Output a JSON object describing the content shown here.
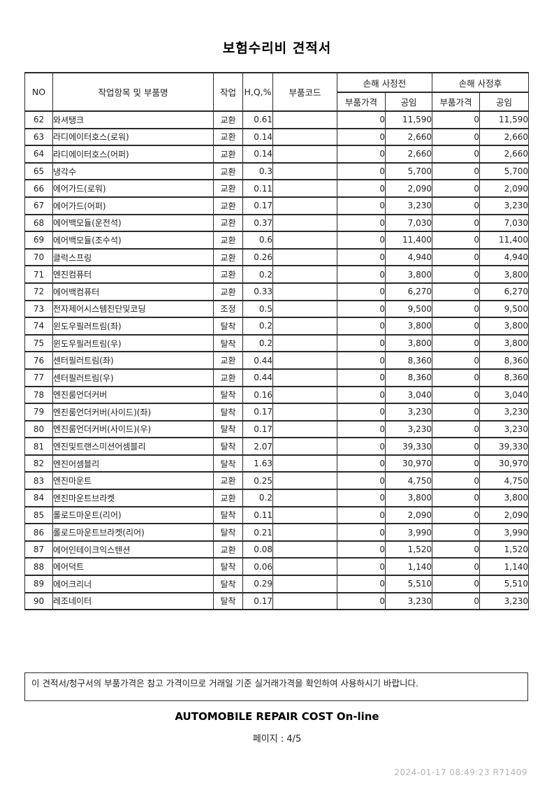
{
  "page": {
    "title": "보험수리비 견적서",
    "footer_note": "이 견적서/청구서의 부품가격은 참고 가격이므로 거래일 기준 실거래가격을 확인하여 사용하시기 바랍니다.",
    "brand": "AUTOMOBILE REPAIR COST On-line",
    "page_label": "페이지 : 4/5",
    "stamp": "2024-01-17 08:49:23 R71409"
  },
  "table": {
    "headers": {
      "no": "NO",
      "item": "작업항목 및 부품명",
      "work": "작업",
      "hq": "H,Q,%",
      "part_code": "부품코드",
      "before": "손해 사정전",
      "after": "손해 사정후",
      "part_price": "부품가격",
      "labor": "공임"
    },
    "rows": [
      {
        "no": "62",
        "item": "와셔탱크",
        "work": "교환",
        "hq": "0.61",
        "code": "",
        "b_part": "0",
        "b_labor": "11,590",
        "a_part": "0",
        "a_labor": "11,590"
      },
      {
        "no": "63",
        "item": "라디에이터호스(로워)",
        "work": "교환",
        "hq": "0.14",
        "code": "",
        "b_part": "0",
        "b_labor": "2,660",
        "a_part": "0",
        "a_labor": "2,660"
      },
      {
        "no": "64",
        "item": "라디에이터호스(어퍼)",
        "work": "교환",
        "hq": "0.14",
        "code": "",
        "b_part": "0",
        "b_labor": "2,660",
        "a_part": "0",
        "a_labor": "2,660"
      },
      {
        "no": "65",
        "item": "냉각수",
        "work": "교환",
        "hq": "0.3",
        "code": "",
        "b_part": "0",
        "b_labor": "5,700",
        "a_part": "0",
        "a_labor": "5,700"
      },
      {
        "no": "66",
        "item": "에어가드(로워)",
        "work": "교환",
        "hq": "0.11",
        "code": "",
        "b_part": "0",
        "b_labor": "2,090",
        "a_part": "0",
        "a_labor": "2,090"
      },
      {
        "no": "67",
        "item": "에어가드(어퍼)",
        "work": "교환",
        "hq": "0.17",
        "code": "",
        "b_part": "0",
        "b_labor": "3,230",
        "a_part": "0",
        "a_labor": "3,230"
      },
      {
        "no": "68",
        "item": "에어백모듈(운전석)",
        "work": "교환",
        "hq": "0.37",
        "code": "",
        "b_part": "0",
        "b_labor": "7,030",
        "a_part": "0",
        "a_labor": "7,030"
      },
      {
        "no": "69",
        "item": "에어백모듈(조수석)",
        "work": "교환",
        "hq": "0.6",
        "code": "",
        "b_part": "0",
        "b_labor": "11,400",
        "a_part": "0",
        "a_labor": "11,400"
      },
      {
        "no": "70",
        "item": "클럭스프링",
        "work": "교환",
        "hq": "0.26",
        "code": "",
        "b_part": "0",
        "b_labor": "4,940",
        "a_part": "0",
        "a_labor": "4,940"
      },
      {
        "no": "71",
        "item": "엔진컴퓨터",
        "work": "교환",
        "hq": "0.2",
        "code": "",
        "b_part": "0",
        "b_labor": "3,800",
        "a_part": "0",
        "a_labor": "3,800"
      },
      {
        "no": "72",
        "item": "에어백컴퓨터",
        "work": "교환",
        "hq": "0.33",
        "code": "",
        "b_part": "0",
        "b_labor": "6,270",
        "a_part": "0",
        "a_labor": "6,270"
      },
      {
        "no": "73",
        "item": "전자제어시스템진단및코딩",
        "work": "조정",
        "hq": "0.5",
        "code": "",
        "b_part": "0",
        "b_labor": "9,500",
        "a_part": "0",
        "a_labor": "9,500"
      },
      {
        "no": "74",
        "item": "윈도우필러트림(좌)",
        "work": "탈착",
        "hq": "0.2",
        "code": "",
        "b_part": "0",
        "b_labor": "3,800",
        "a_part": "0",
        "a_labor": "3,800"
      },
      {
        "no": "75",
        "item": "윈도우필러트림(우)",
        "work": "탈착",
        "hq": "0.2",
        "code": "",
        "b_part": "0",
        "b_labor": "3,800",
        "a_part": "0",
        "a_labor": "3,800"
      },
      {
        "no": "76",
        "item": "센터필러트림(좌)",
        "work": "교환",
        "hq": "0.44",
        "code": "",
        "b_part": "0",
        "b_labor": "8,360",
        "a_part": "0",
        "a_labor": "8,360"
      },
      {
        "no": "77",
        "item": "센터필러트림(우)",
        "work": "교환",
        "hq": "0.44",
        "code": "",
        "b_part": "0",
        "b_labor": "8,360",
        "a_part": "0",
        "a_labor": "8,360"
      },
      {
        "no": "78",
        "item": "엔진룸언더커버",
        "work": "탈착",
        "hq": "0.16",
        "code": "",
        "b_part": "0",
        "b_labor": "3,040",
        "a_part": "0",
        "a_labor": "3,040"
      },
      {
        "no": "79",
        "item": "엔진룸언더커버(사이드)(좌)",
        "work": "탈착",
        "hq": "0.17",
        "code": "",
        "b_part": "0",
        "b_labor": "3,230",
        "a_part": "0",
        "a_labor": "3,230"
      },
      {
        "no": "80",
        "item": "엔진룸언더커버(사이드)(우)",
        "work": "탈착",
        "hq": "0.17",
        "code": "",
        "b_part": "0",
        "b_labor": "3,230",
        "a_part": "0",
        "a_labor": "3,230"
      },
      {
        "no": "81",
        "item": "엔진및트랜스미션어셈블리",
        "work": "탈착",
        "hq": "2.07",
        "code": "",
        "b_part": "0",
        "b_labor": "39,330",
        "a_part": "0",
        "a_labor": "39,330"
      },
      {
        "no": "82",
        "item": "엔진어셈블리",
        "work": "탈착",
        "hq": "1.63",
        "code": "",
        "b_part": "0",
        "b_labor": "30,970",
        "a_part": "0",
        "a_labor": "30,970"
      },
      {
        "no": "83",
        "item": "엔진마운트",
        "work": "교환",
        "hq": "0.25",
        "code": "",
        "b_part": "0",
        "b_labor": "4,750",
        "a_part": "0",
        "a_labor": "4,750"
      },
      {
        "no": "84",
        "item": "엔진마운트브라켓",
        "work": "교환",
        "hq": "0.2",
        "code": "",
        "b_part": "0",
        "b_labor": "3,800",
        "a_part": "0",
        "a_labor": "3,800"
      },
      {
        "no": "85",
        "item": "롤로드마운트(리어)",
        "work": "탈착",
        "hq": "0.11",
        "code": "",
        "b_part": "0",
        "b_labor": "2,090",
        "a_part": "0",
        "a_labor": "2,090"
      },
      {
        "no": "86",
        "item": "롤로드마운트브라켓(리어)",
        "work": "탈착",
        "hq": "0.21",
        "code": "",
        "b_part": "0",
        "b_labor": "3,990",
        "a_part": "0",
        "a_labor": "3,990"
      },
      {
        "no": "87",
        "item": "에어인테이크익스텐션",
        "work": "교환",
        "hq": "0.08",
        "code": "",
        "b_part": "0",
        "b_labor": "1,520",
        "a_part": "0",
        "a_labor": "1,520"
      },
      {
        "no": "88",
        "item": "에어덕트",
        "work": "탈착",
        "hq": "0.06",
        "code": "",
        "b_part": "0",
        "b_labor": "1,140",
        "a_part": "0",
        "a_labor": "1,140"
      },
      {
        "no": "89",
        "item": "에어크리너",
        "work": "탈착",
        "hq": "0.29",
        "code": "",
        "b_part": "0",
        "b_labor": "5,510",
        "a_part": "0",
        "a_labor": "5,510"
      },
      {
        "no": "90",
        "item": "레조네이터",
        "work": "탈착",
        "hq": "0.17",
        "code": "",
        "b_part": "0",
        "b_labor": "3,230",
        "a_part": "0",
        "a_labor": "3,230"
      }
    ]
  }
}
